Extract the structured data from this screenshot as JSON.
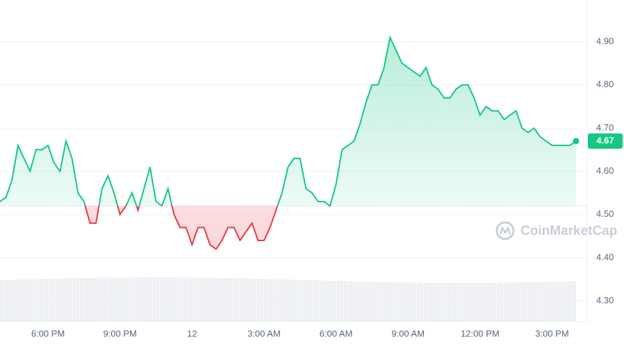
{
  "chart_data": {
    "type": "line",
    "watermark": "CoinMarketCap",
    "categories": [
      null,
      null,
      null,
      null,
      null,
      null,
      null,
      null,
      "6:00 PM",
      null,
      null,
      null,
      null,
      null,
      null,
      null,
      null,
      null,
      null,
      null,
      "9:00 PM",
      null,
      null,
      null,
      null,
      null,
      null,
      null,
      null,
      null,
      null,
      null,
      "12",
      null,
      null,
      null,
      null,
      null,
      null,
      null,
      null,
      null,
      null,
      null,
      "3:00 AM",
      null,
      null,
      null,
      null,
      null,
      null,
      null,
      null,
      null,
      null,
      null,
      "6:00 AM",
      null,
      null,
      null,
      null,
      null,
      null,
      null,
      null,
      null,
      null,
      null,
      "9:00 AM",
      null,
      null,
      null,
      null,
      null,
      null,
      null,
      null,
      null,
      null,
      null,
      "12:00 PM",
      null,
      null,
      null,
      null,
      null,
      null,
      null,
      null,
      null,
      null,
      null,
      "3:00 PM",
      null,
      null,
      null,
      null
    ],
    "values": [
      4.53,
      4.54,
      4.58,
      4.66,
      4.63,
      4.6,
      4.65,
      4.65,
      4.66,
      4.62,
      4.6,
      4.67,
      4.63,
      4.55,
      4.53,
      4.48,
      4.48,
      4.56,
      4.59,
      4.55,
      4.5,
      4.52,
      4.55,
      4.51,
      4.56,
      4.61,
      4.53,
      4.52,
      4.56,
      4.5,
      4.47,
      4.47,
      4.43,
      4.47,
      4.47,
      4.43,
      4.42,
      4.44,
      4.47,
      4.47,
      4.44,
      4.46,
      4.48,
      4.44,
      4.44,
      4.47,
      4.51,
      4.55,
      4.61,
      4.63,
      4.63,
      4.56,
      4.55,
      4.53,
      4.53,
      4.52,
      4.57,
      4.65,
      4.66,
      4.67,
      4.71,
      4.76,
      4.8,
      4.8,
      4.84,
      4.91,
      4.88,
      4.85,
      4.84,
      4.83,
      4.82,
      4.84,
      4.8,
      4.79,
      4.77,
      4.77,
      4.79,
      4.8,
      4.8,
      4.77,
      4.73,
      4.75,
      4.74,
      4.74,
      4.72,
      4.73,
      4.74,
      4.7,
      4.69,
      4.7,
      4.68,
      4.67,
      4.66,
      4.66,
      4.66,
      4.66,
      4.67
    ],
    "reference_value": 4.52,
    "up_color": "#16c784",
    "down_color": "#ea3943",
    "ylim": [
      4.26,
      4.99
    ],
    "yticks": [
      {
        "value": 4.3,
        "label": "4.30"
      },
      {
        "value": 4.4,
        "label": "4.40"
      },
      {
        "value": 4.5,
        "label": "4.50"
      },
      {
        "value": 4.6,
        "label": "4.60"
      },
      {
        "value": 4.7,
        "label": "4.70"
      },
      {
        "value": 4.8,
        "label": "4.80"
      },
      {
        "value": 4.9,
        "label": "4.90"
      }
    ],
    "grid": true
  }
}
